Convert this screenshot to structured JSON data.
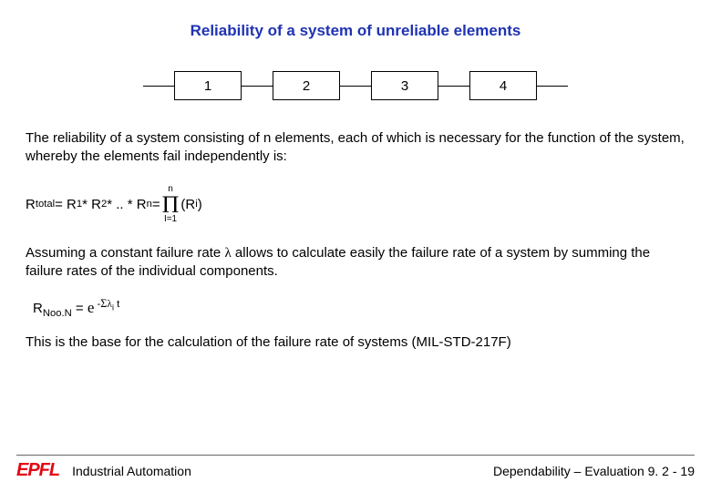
{
  "title": "Reliability of a system of unreliable elements",
  "title_color": "#1f33b3",
  "diagram": {
    "boxes": [
      "1",
      "2",
      "3",
      "4"
    ],
    "box_border": "#000000",
    "wire_color": "#000000"
  },
  "para1": "The reliability of a system consisting of n elements, each of which is necessary for the function of the system, whereby the elements fail independently is:",
  "formula1": {
    "lhs_label": "R",
    "lhs_sub": "total",
    "eq": " = R",
    "r1_sub": "1",
    "star1": " * R",
    "r2_sub": "2",
    "star2": " * .. * R",
    "rn_sub": "n",
    "eq2": " = ",
    "prod_upper": "n",
    "prod_symbol": "Π",
    "prod_lower": "I=1",
    "after_prod": " (R",
    "ri_sub": "i",
    "close": ")"
  },
  "para2a": "Assuming a constant failure rate ",
  "lambda": "λ",
  "para2b": "  allows to calculate easily the failure rate of a system by summing the failure rates of the individual components.",
  "formula2": {
    "r": "R",
    "r_sub": "Noo.N",
    "eq": " = ",
    "e": "e",
    "exp_minus": " -",
    "sigma": "Σ",
    "lambda": "λ",
    "exp_i": "i",
    "t": " t"
  },
  "para3": "This is the base for the calculation of the failure rate of systems (MIL-STD-217F)",
  "footer": {
    "logo_text": "EPFL",
    "logo_color": "#e30613",
    "left_label": "Industrial Automation",
    "right_label": "Dependability – Evaluation 9. 2 - 19"
  }
}
